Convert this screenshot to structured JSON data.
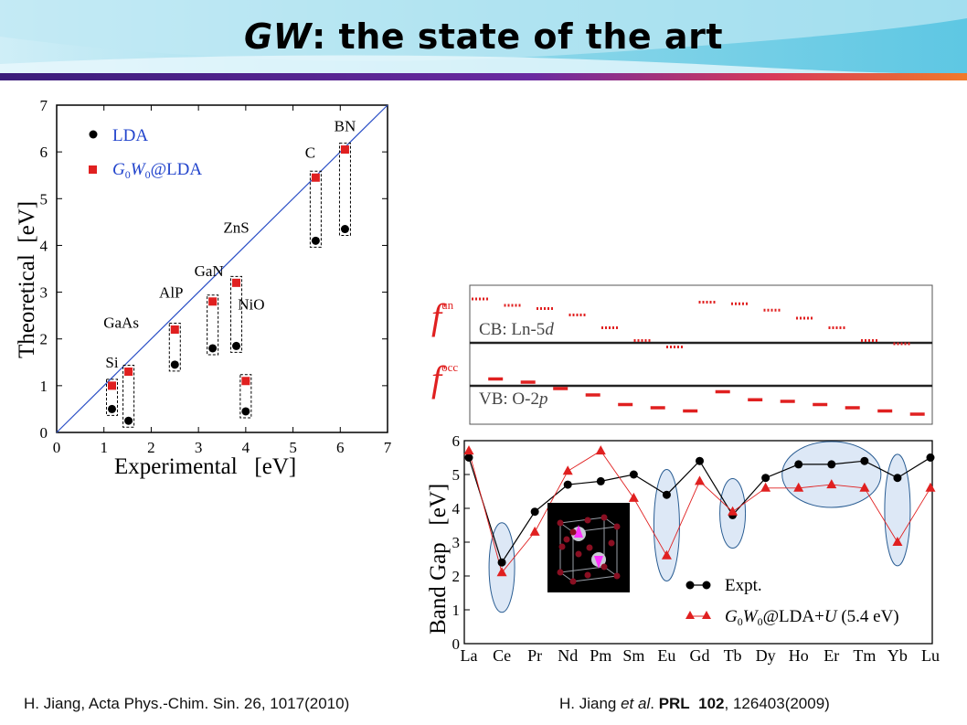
{
  "slide": {
    "title_em": "GW",
    "title_rest": ": the state of the art",
    "ref_left": "H. Jiang,  Acta Phys.-Chim. Sin. 26, 1017(2010)",
    "ref_right": {
      "pre": "H. Jiang ",
      "etal": "et al",
      "dot": ". ",
      "journal": "PRL",
      "vol": "102",
      "rest": ", 126403(2009)"
    }
  },
  "chart_data": [
    {
      "type": "scatter",
      "xlabel": "Experimental   [eV]",
      "ylabel": "Theoretical  [eV]",
      "xlim": [
        0,
        7
      ],
      "ylim": [
        0,
        7
      ],
      "xticks": [
        "0",
        "1",
        "2",
        "3",
        "4",
        "5",
        "6",
        "7"
      ],
      "yticks": [
        "0",
        "1",
        "2",
        "3",
        "4",
        "5",
        "6",
        "7"
      ],
      "materials": [
        "Si",
        "GaAs",
        "AlP",
        "GaN",
        "ZnS",
        "NiO",
        "C",
        "BN"
      ],
      "series": [
        {
          "name": "LDA",
          "color": "#000000",
          "points": [
            [
              1.17,
              0.5
            ],
            [
              1.52,
              0.25
            ],
            [
              2.5,
              1.45
            ],
            [
              3.3,
              1.8
            ],
            [
              3.8,
              1.85
            ],
            [
              4.0,
              0.45
            ],
            [
              5.48,
              4.1
            ],
            [
              6.1,
              4.35
            ]
          ]
        },
        {
          "name": "G0W0@LDA",
          "color": "#e02020",
          "points": [
            [
              1.17,
              1.0
            ],
            [
              1.52,
              1.3
            ],
            [
              2.5,
              2.2
            ],
            [
              3.3,
              2.8
            ],
            [
              3.8,
              3.2
            ],
            [
              4.0,
              1.1
            ],
            [
              5.48,
              5.45
            ],
            [
              6.1,
              6.05
            ]
          ]
        }
      ],
      "legend": {
        "lda": "LDA",
        "g0w0_g": "G",
        "g0w0_s1": "0",
        "g0w0_w": "W",
        "g0w0_s2": "0",
        "g0w0_rest": "@LDA"
      }
    },
    {
      "type": "line",
      "ylabel": "Band Gap   [eV]",
      "ylim": [
        0,
        6
      ],
      "yticks": [
        "0",
        "1",
        "2",
        "3",
        "4",
        "5",
        "6"
      ],
      "categories": [
        "La",
        "Ce",
        "Pr",
        "Nd",
        "Pm",
        "Sm",
        "Eu",
        "Gd",
        "Tb",
        "Dy",
        "Ho",
        "Er",
        "Tm",
        "Yb",
        "Lu"
      ],
      "series": [
        {
          "name": "Expt.",
          "color": "#000000",
          "values": [
            5.5,
            2.4,
            3.9,
            4.7,
            4.8,
            5.0,
            4.4,
            5.4,
            3.8,
            4.9,
            5.3,
            5.3,
            5.4,
            4.9,
            5.5
          ]
        },
        {
          "name": "G0W0@LDA+U (5.4 eV)",
          "color": "#e02020",
          "values": [
            5.7,
            2.1,
            3.3,
            5.1,
            5.7,
            4.3,
            2.6,
            4.8,
            3.9,
            4.6,
            4.6,
            4.7,
            4.6,
            3.0,
            4.6
          ]
        }
      ],
      "legend": {
        "expt": "Expt.",
        "g": "G",
        "s1": "0",
        "w": "W",
        "s2": "0",
        "lda": "@LDA+",
        "u": "U",
        "tail": " (5.4 eV)"
      }
    }
  ],
  "level_diagram": {
    "cb_label": "CB: Ln-5",
    "cb_d": "d",
    "vb_label": "VB: O-2",
    "vb_p": "p",
    "f_un_sup": "un",
    "f_occ_sup": "occ",
    "f_letter": "f",
    "f_un_values": [
      5.2,
      5.0,
      4.9,
      4.7,
      4.3,
      3.9,
      3.7,
      5.1,
      5.05,
      4.85,
      4.6,
      4.3,
      3.9,
      3.8
    ],
    "f_occ_values": [
      2.7,
      2.6,
      2.4,
      2.2,
      1.9,
      1.8,
      1.7,
      2.3,
      2.05,
      2.0,
      1.9,
      1.8,
      1.7,
      1.6,
      1.55
    ]
  },
  "colors": {
    "red": "#e02020",
    "blue": "#2244cc",
    "ellipse_fill": "#dde8f6",
    "ellipse_stroke": "#2a5d93"
  }
}
